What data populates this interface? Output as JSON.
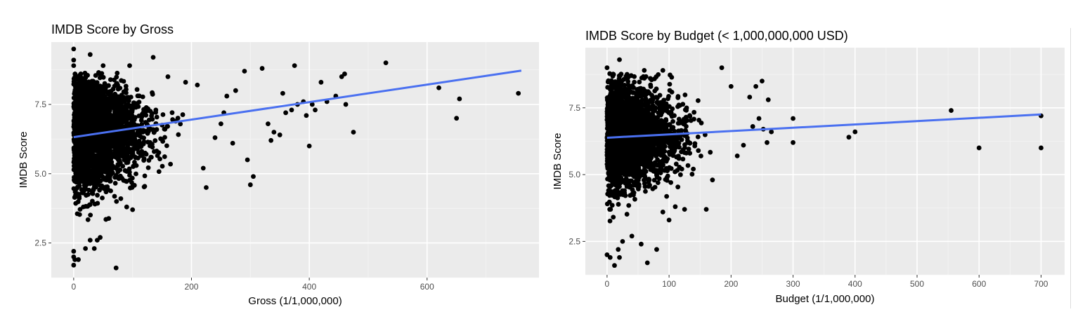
{
  "chart_data": [
    {
      "type": "scatter",
      "title": "IMDB Score by Gross",
      "xlabel": "Gross (1/1,000,000)",
      "ylabel": "IMDB Score",
      "xlim": [
        -38,
        790
      ],
      "ylim": [
        1.25,
        9.75
      ],
      "x_ticks": [
        0,
        200,
        400,
        600
      ],
      "x_tick_labels": [
        "0",
        "200",
        "400",
        "600"
      ],
      "y_ticks": [
        2.5,
        5.0,
        7.5
      ],
      "y_tick_labels": [
        "2.5",
        "5.0",
        "7.5"
      ],
      "grid": true,
      "legend": "none",
      "trend_line": {
        "color": "#4a70f0",
        "x": [
          0,
          760
        ],
        "y": [
          6.32,
          8.72
        ]
      },
      "point_cloud": {
        "x_max": 190,
        "y_min": 2.8,
        "y_max": 8.7
      },
      "series": [
        {
          "values": [
            [
              0,
              9.5
            ],
            [
              0,
              9.1
            ],
            [
              0,
              8.9
            ],
            [
              0,
              1.7
            ],
            [
              0,
              2.0
            ],
            [
              0,
              2.2
            ],
            [
              2,
              1.9
            ],
            [
              8,
              1.9
            ],
            [
              20,
              2.3
            ],
            [
              28,
              2.6
            ],
            [
              35,
              2.3
            ],
            [
              40,
              2.6
            ],
            [
              45,
              2.7
            ],
            [
              72,
              1.6
            ],
            [
              80,
              4.1
            ],
            [
              90,
              3.8
            ],
            [
              100,
              3.7
            ],
            [
              28,
              9.3
            ],
            [
              50,
              8.9
            ],
            [
              95,
              8.9
            ],
            [
              135,
              9.2
            ],
            [
              160,
              8.5
            ],
            [
              190,
              8.3
            ],
            [
              210,
              8.2
            ],
            [
              220,
              5.2
            ],
            [
              225,
              4.5
            ],
            [
              240,
              6.3
            ],
            [
              250,
              6.8
            ],
            [
              255,
              7.2
            ],
            [
              260,
              7.8
            ],
            [
              270,
              6.1
            ],
            [
              275,
              8.0
            ],
            [
              290,
              8.7
            ],
            [
              295,
              5.5
            ],
            [
              300,
              4.6
            ],
            [
              305,
              4.9
            ],
            [
              320,
              8.8
            ],
            [
              330,
              6.8
            ],
            [
              335,
              6.2
            ],
            [
              340,
              6.5
            ],
            [
              350,
              6.4
            ],
            [
              355,
              7.9
            ],
            [
              360,
              7.2
            ],
            [
              370,
              7.3
            ],
            [
              375,
              8.9
            ],
            [
              380,
              7.5
            ],
            [
              390,
              7.6
            ],
            [
              395,
              7.1
            ],
            [
              400,
              6.0
            ],
            [
              405,
              7.5
            ],
            [
              410,
              7.3
            ],
            [
              420,
              8.3
            ],
            [
              430,
              7.6
            ],
            [
              445,
              7.8
            ],
            [
              455,
              8.5
            ],
            [
              460,
              8.6
            ],
            [
              462,
              7.5
            ],
            [
              475,
              6.5
            ],
            [
              530,
              9.0
            ],
            [
              620,
              8.1
            ],
            [
              650,
              7.0
            ],
            [
              655,
              7.7
            ],
            [
              755,
              7.9
            ]
          ]
        }
      ]
    },
    {
      "type": "scatter",
      "title": "IMDB Score by Budget (< 1,000,000,000 USD)",
      "xlabel": "Budget (1/1,000,000)",
      "ylabel": "IMDB Score",
      "xlim": [
        -35,
        738
      ],
      "ylim": [
        1.25,
        9.75
      ],
      "x_ticks": [
        0,
        100,
        200,
        300,
        400,
        500,
        600,
        700
      ],
      "x_tick_labels": [
        "0",
        "100",
        "200",
        "300",
        "400",
        "500",
        "600",
        "700"
      ],
      "y_ticks": [
        2.5,
        5.0,
        7.5
      ],
      "y_tick_labels": [
        "2.5",
        "5.0",
        "7.5"
      ],
      "grid": true,
      "legend": "none",
      "trend_line": {
        "color": "#4a70f0",
        "x": [
          0,
          700
        ],
        "y": [
          6.38,
          7.25
        ]
      },
      "point_cloud": {
        "x_max": 180,
        "y_min": 2.9,
        "y_max": 8.8
      },
      "series": [
        {
          "values": [
            [
              0,
              2.0
            ],
            [
              5,
              1.9
            ],
            [
              12,
              1.6
            ],
            [
              20,
              1.9
            ],
            [
              18,
              2.2
            ],
            [
              25,
              2.5
            ],
            [
              40,
              2.7
            ],
            [
              55,
              2.4
            ],
            [
              65,
              1.7
            ],
            [
              80,
              2.2
            ],
            [
              90,
              3.6
            ],
            [
              100,
              3.3
            ],
            [
              110,
              3.8
            ],
            [
              125,
              3.7
            ],
            [
              160,
              3.7
            ],
            [
              170,
              4.8
            ],
            [
              0,
              9.0
            ],
            [
              20,
              9.3
            ],
            [
              60,
              8.9
            ],
            [
              90,
              8.9
            ],
            [
              185,
              9.0
            ],
            [
              200,
              8.3
            ],
            [
              210,
              5.7
            ],
            [
              220,
              6.1
            ],
            [
              230,
              7.9
            ],
            [
              235,
              6.8
            ],
            [
              240,
              8.3
            ],
            [
              245,
              7.1
            ],
            [
              250,
              8.5
            ],
            [
              252,
              6.7
            ],
            [
              258,
              6.2
            ],
            [
              260,
              7.8
            ],
            [
              265,
              6.6
            ],
            [
              300,
              7.1
            ],
            [
              300,
              6.2
            ],
            [
              390,
              6.4
            ],
            [
              400,
              6.6
            ],
            [
              555,
              7.4
            ],
            [
              600,
              6.0
            ],
            [
              700,
              7.2
            ],
            [
              700,
              6.0
            ]
          ]
        }
      ]
    }
  ]
}
